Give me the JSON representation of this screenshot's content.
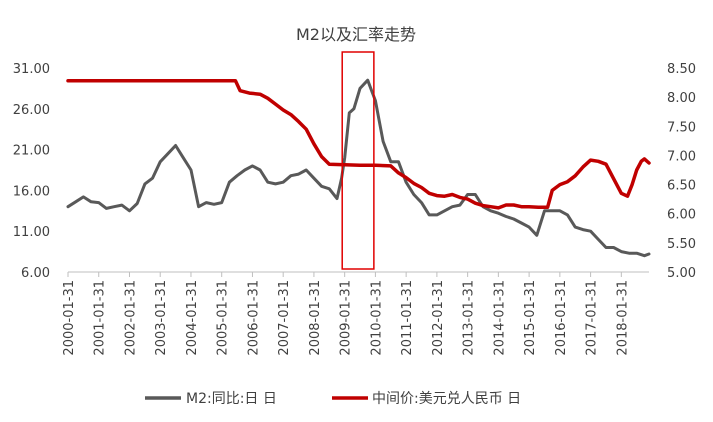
{
  "chart_data": {
    "type": "line",
    "title": "M2以及汇率走势",
    "x_tick_labels": [
      "2000-01-31",
      "2001-01-31",
      "2002-01-31",
      "2003-01-31",
      "2004-01-31",
      "2005-01-31",
      "2006-01-31",
      "2007-01-31",
      "2008-01-31",
      "2009-01-31",
      "2010-01-31",
      "2011-01-31",
      "2012-01-31",
      "2013-01-31",
      "2014-01-31",
      "2015-01-31",
      "2016-01-31",
      "2017-01-31",
      "2018-01-31"
    ],
    "y_left": {
      "ticks": [
        "6.00",
        "11.00",
        "16.00",
        "21.00",
        "26.00",
        "31.00"
      ],
      "ylim": [
        6,
        31
      ]
    },
    "y_right": {
      "ticks": [
        "5.00",
        "5.50",
        "6.00",
        "6.50",
        "7.00",
        "7.50",
        "8.00",
        "8.50"
      ],
      "ylim": [
        5,
        8.5
      ]
    },
    "x_range": [
      2000.0,
      2018.9
    ],
    "highlight_box": {
      "x_start": 2008.92,
      "x_end": 2009.95
    },
    "legend_position": "bottom",
    "series": [
      {
        "name": "M2:同比:日 日",
        "axis": "left",
        "color": "#595959",
        "x": [
          2000.0,
          2000.25,
          2000.5,
          2000.75,
          2001.0,
          2001.25,
          2001.5,
          2001.75,
          2002.0,
          2002.25,
          2002.5,
          2002.75,
          2003.0,
          2003.25,
          2003.5,
          2003.75,
          2004.0,
          2004.25,
          2004.5,
          2004.75,
          2005.0,
          2005.25,
          2005.5,
          2005.75,
          2006.0,
          2006.25,
          2006.5,
          2006.75,
          2007.0,
          2007.25,
          2007.5,
          2007.75,
          2008.0,
          2008.25,
          2008.5,
          2008.75,
          2008.9,
          2009.0,
          2009.15,
          2009.3,
          2009.5,
          2009.75,
          2009.9,
          2010.0,
          2010.25,
          2010.5,
          2010.75,
          2011.0,
          2011.25,
          2011.5,
          2011.75,
          2012.0,
          2012.25,
          2012.5,
          2012.75,
          2013.0,
          2013.25,
          2013.5,
          2013.75,
          2014.0,
          2014.25,
          2014.5,
          2014.75,
          2015.0,
          2015.25,
          2015.5,
          2015.75,
          2016.0,
          2016.25,
          2016.5,
          2016.75,
          2017.0,
          2017.25,
          2017.5,
          2017.75,
          2018.0,
          2018.25,
          2018.5,
          2018.75,
          2018.9
        ],
        "values": [
          14.0,
          14.6,
          15.2,
          14.6,
          14.5,
          13.8,
          14.0,
          14.2,
          13.5,
          14.4,
          16.8,
          17.5,
          19.5,
          20.5,
          21.5,
          20.0,
          18.5,
          14.0,
          14.5,
          14.3,
          14.5,
          17.0,
          17.8,
          18.5,
          19.0,
          18.5,
          17.0,
          16.8,
          17.0,
          17.8,
          18.0,
          18.5,
          17.5,
          16.5,
          16.2,
          15.0,
          17.5,
          20.0,
          25.5,
          26.0,
          28.5,
          29.5,
          28.0,
          27.0,
          22.0,
          19.5,
          19.5,
          17.0,
          15.5,
          14.5,
          13.0,
          13.0,
          13.5,
          14.0,
          14.2,
          15.5,
          15.5,
          14.0,
          13.5,
          13.2,
          12.8,
          12.5,
          12.0,
          11.5,
          10.5,
          13.5,
          13.5,
          13.5,
          13.0,
          11.5,
          11.2,
          11.0,
          10.0,
          9.0,
          9.0,
          8.5,
          8.3,
          8.3,
          8.0,
          8.2
        ]
      },
      {
        "name": "中间价:美元兑人民币 日",
        "axis": "right",
        "color": "#c00000",
        "x": [
          2000.0,
          2005.45,
          2005.6,
          2005.9,
          2006.25,
          2006.5,
          2006.75,
          2007.0,
          2007.25,
          2007.5,
          2007.75,
          2008.0,
          2008.25,
          2008.5,
          2009.0,
          2009.5,
          2010.0,
          2010.5,
          2010.75,
          2011.0,
          2011.25,
          2011.5,
          2011.75,
          2012.0,
          2012.25,
          2012.5,
          2012.75,
          2013.0,
          2013.25,
          2013.5,
          2013.75,
          2014.0,
          2014.25,
          2014.5,
          2014.75,
          2015.0,
          2015.3,
          2015.6,
          2015.75,
          2016.0,
          2016.25,
          2016.5,
          2016.75,
          2017.0,
          2017.25,
          2017.5,
          2017.75,
          2018.0,
          2018.2,
          2018.35,
          2018.5,
          2018.65,
          2018.75,
          2018.9
        ],
        "values": [
          8.28,
          8.28,
          8.11,
          8.07,
          8.05,
          7.98,
          7.88,
          7.78,
          7.7,
          7.58,
          7.45,
          7.2,
          6.98,
          6.85,
          6.84,
          6.83,
          6.83,
          6.82,
          6.7,
          6.62,
          6.52,
          6.45,
          6.35,
          6.31,
          6.3,
          6.33,
          6.28,
          6.25,
          6.18,
          6.14,
          6.12,
          6.1,
          6.15,
          6.15,
          6.12,
          6.12,
          6.11,
          6.11,
          6.4,
          6.5,
          6.55,
          6.65,
          6.8,
          6.92,
          6.9,
          6.85,
          6.6,
          6.35,
          6.3,
          6.5,
          6.75,
          6.9,
          6.94,
          6.87
        ]
      }
    ]
  }
}
